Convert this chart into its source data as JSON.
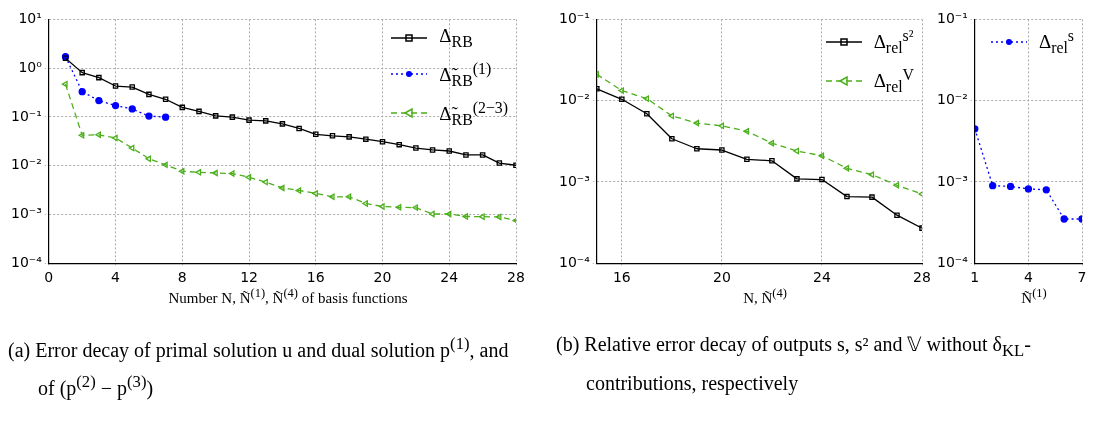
{
  "chart_data": [
    {
      "type": "line",
      "xlabel": "Number N, Ñ$^{(1)}$, Ñ$^{(4)}$ of basis functions",
      "x": [
        1,
        2,
        3,
        4,
        5,
        6,
        7,
        8,
        9,
        10,
        11,
        12,
        13,
        14,
        15,
        16,
        17,
        18,
        19,
        20,
        21,
        22,
        23,
        24,
        25,
        26,
        27,
        28
      ],
      "xlim": [
        0,
        28
      ],
      "xticks": [
        0,
        4,
        8,
        12,
        16,
        20,
        24,
        28
      ],
      "log": true,
      "ylim": [
        0.0001,
        10
      ],
      "yticks": [
        {
          "value": 0.0001,
          "label": "10⁻⁴"
        },
        {
          "value": 0.001,
          "label": "10⁻³"
        },
        {
          "value": 0.01,
          "label": "10⁻²"
        },
        {
          "value": 0.1,
          "label": "10⁻¹"
        },
        {
          "value": 1,
          "label": "10⁰"
        },
        {
          "value": 10,
          "label": "10¹"
        }
      ],
      "grid": true,
      "legend": "top right",
      "annotations": [
        "(a) Error decay of primal solution u and dual solution p$^{(1)}$, and of (p$^{(2)}$ − p$^{(3)}$)"
      ],
      "series": [
        {
          "name": "Δ$_{RB}$",
          "color": "#000000",
          "marker": "square",
          "line_style": "solid",
          "values": [
            1.6,
            0.81,
            0.64,
            0.43,
            0.41,
            0.29,
            0.23,
            0.157,
            0.13,
            0.105,
            0.099,
            0.086,
            0.083,
            0.072,
            0.058,
            0.044,
            0.041,
            0.039,
            0.035,
            0.031,
            0.027,
            0.023,
            0.021,
            0.02,
            0.0166,
            0.0166,
            0.0113,
            0.0102
          ]
        },
        {
          "name": "Δ̃$_{RB}$$^{(1)}$",
          "color": "#0000ff",
          "marker": "circle",
          "line_style": "dotted",
          "x": [
            1,
            2,
            3,
            4,
            5,
            6,
            7
          ],
          "values": [
            1.72,
            0.33,
            0.216,
            0.171,
            0.146,
            0.104,
            0.099
          ]
        },
        {
          "name": "Δ̃$_{RB}$$^{(2−3)}$",
          "color": "#4caf1c",
          "marker": "triangle",
          "line_style": "dashed",
          "values": [
            0.47,
            0.042,
            0.043,
            0.037,
            0.023,
            0.0139,
            0.0104,
            0.0077,
            0.0073,
            0.0071,
            0.0069,
            0.0058,
            0.0046,
            0.0035,
            0.0031,
            0.0027,
            0.0023,
            0.0023,
            0.00168,
            0.00145,
            0.0014,
            0.00138,
            0.00102,
            0.00102,
            0.00091,
            0.0009,
            0.00089,
            0.00075
          ]
        }
      ]
    },
    {
      "type": "line",
      "xlabel": "N, Ñ$^{(4)}$",
      "x": [
        15,
        16,
        17,
        18,
        19,
        20,
        21,
        22,
        23,
        24,
        25,
        26,
        27,
        28
      ],
      "xlim": [
        15,
        28
      ],
      "xticks": [
        16,
        20,
        24,
        28
      ],
      "log": true,
      "ylim": [
        0.0001,
        0.1
      ],
      "yticks": [
        {
          "value": 0.0001,
          "label": "10⁻⁴"
        },
        {
          "value": 0.001,
          "label": "10⁻³"
        },
        {
          "value": 0.01,
          "label": "10⁻²"
        },
        {
          "value": 0.1,
          "label": "10⁻¹"
        }
      ],
      "grid": true,
      "legend": "top right",
      "annotations": [
        "(b) Relative error decay of outputs s, s² and 𝕍 without δ$_{KL}$-contributions, respectively"
      ],
      "series": [
        {
          "name": "Δ$_{rel}$$^{s²}$",
          "color": "#000000",
          "marker": "square",
          "line_style": "solid",
          "values": [
            0.014,
            0.0104,
            0.0069,
            0.0034,
            0.00256,
            0.00247,
            0.0019,
            0.00182,
            0.00109,
            0.00107,
            0.00066,
            0.00065,
            0.00039,
            0.00027
          ]
        },
        {
          "name": "Δ$_{rel}$$^{V}$",
          "color": "#4caf1c",
          "marker": "triangle",
          "line_style": "dashed",
          "values": [
            0.0211,
            0.0133,
            0.0106,
            0.0065,
            0.0053,
            0.0049,
            0.0042,
            0.003,
            0.0024,
            0.0021,
            0.00147,
            0.00123,
            0.00091,
            0.00071
          ]
        }
      ]
    },
    {
      "type": "line",
      "xlabel": "Ñ$^{(1)}$",
      "x": [
        1,
        2,
        3,
        4,
        5,
        6,
        7
      ],
      "xlim": [
        1,
        7
      ],
      "xticks": [
        1,
        4,
        7
      ],
      "log": true,
      "ylim": [
        0.0001,
        0.1
      ],
      "yticks": [
        {
          "value": 0.0001,
          "label": "10⁻⁴"
        },
        {
          "value": 0.001,
          "label": "10⁻³"
        },
        {
          "value": 0.01,
          "label": "10⁻²"
        },
        {
          "value": 0.1,
          "label": "10⁻¹"
        }
      ],
      "grid": true,
      "legend": "top right",
      "series": [
        {
          "name": "Δ$_{rel}$$^{s}$",
          "color": "#0000ff",
          "marker": "circle",
          "line_style": "dotted",
          "values": [
            0.0045,
            0.0009,
            0.00088,
            0.00082,
            0.0008,
            0.00035,
            0.00035
          ]
        }
      ]
    }
  ]
}
